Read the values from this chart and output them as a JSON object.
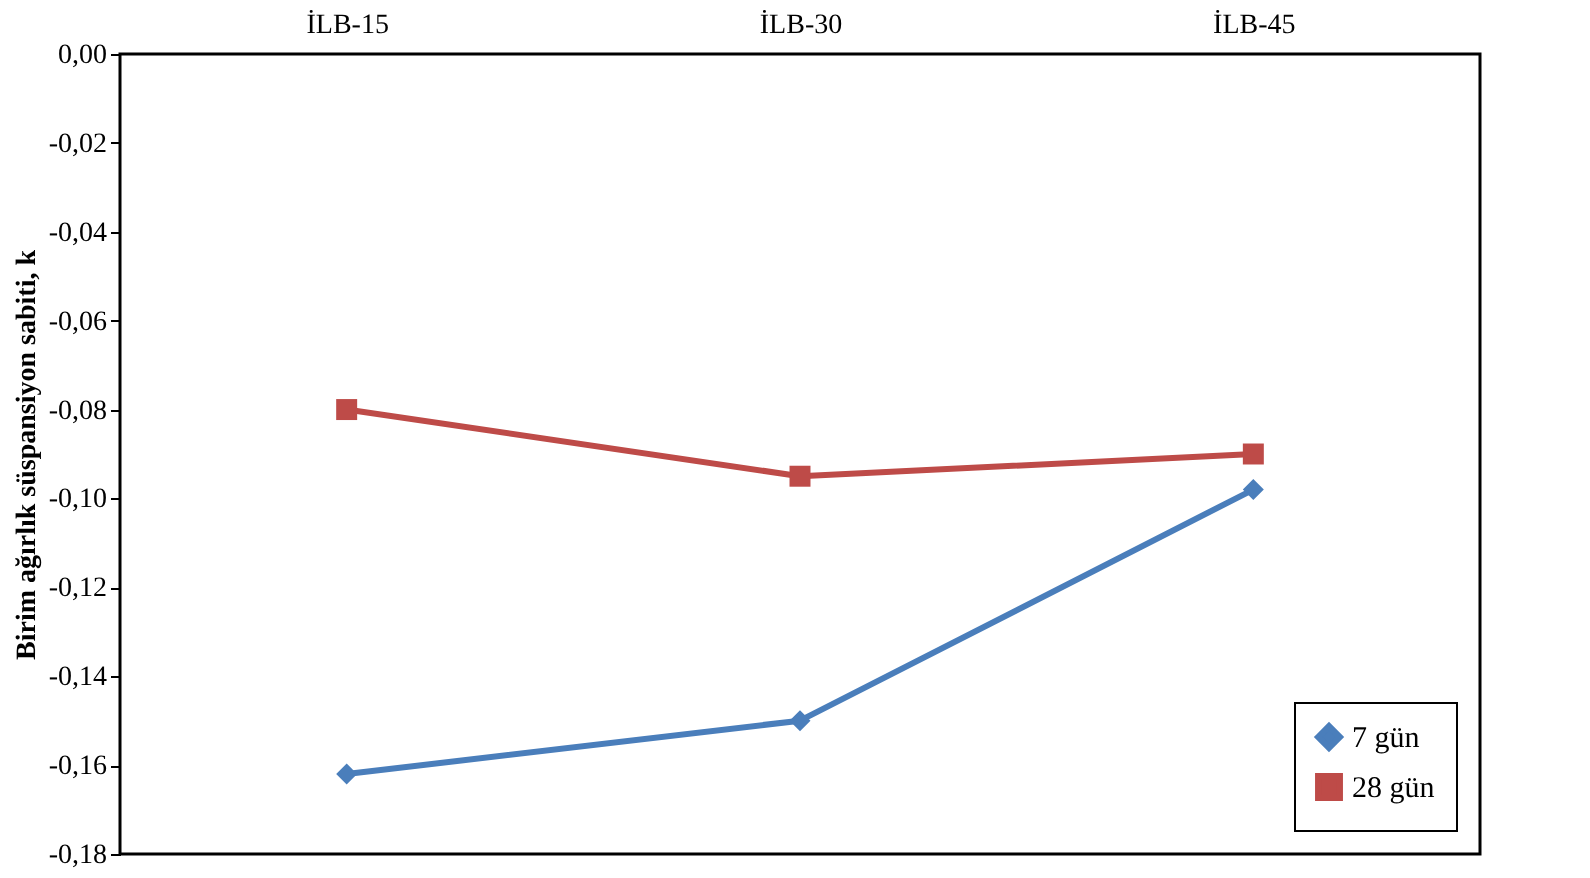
{
  "chart_data": {
    "type": "line",
    "ylabel": "Birim ağırlık süspansiyon sabiti, k",
    "categories": [
      "İLB-15",
      "İLB-30",
      "İLB-45"
    ],
    "series": [
      {
        "name": "7 gün",
        "color": "#4a7ebb",
        "marker": "diamond",
        "values": [
          -0.162,
          -0.15,
          -0.098
        ]
      },
      {
        "name": "28 gün",
        "color": "#be4b48",
        "marker": "square",
        "values": [
          -0.08,
          -0.095,
          -0.09
        ]
      }
    ],
    "ylim": [
      -0.18,
      0
    ],
    "yticks": [
      {
        "value": 0,
        "label": "0,00"
      },
      {
        "value": -0.02,
        "label": "-0,02"
      },
      {
        "value": -0.04,
        "label": "-0,04"
      },
      {
        "value": -0.06,
        "label": "-0,06"
      },
      {
        "value": -0.08,
        "label": "-0,08"
      },
      {
        "value": -0.1,
        "label": "-0,10"
      },
      {
        "value": -0.12,
        "label": "-0,12"
      },
      {
        "value": -0.14,
        "label": "-0,14"
      },
      {
        "value": -0.16,
        "label": "-0,16"
      },
      {
        "value": -0.18,
        "label": "-0,18"
      }
    ],
    "grid": false,
    "legend": "bottom right",
    "line_style": "solid"
  }
}
